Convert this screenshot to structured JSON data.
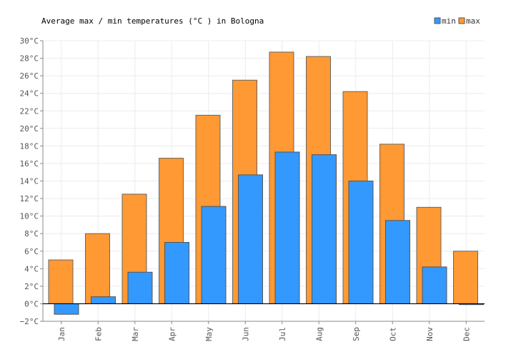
{
  "chart_data": {
    "type": "bar",
    "title": "Average max / min temperatures (°C ) in Bologna",
    "categories": [
      "Jan",
      "Feb",
      "Mar",
      "Apr",
      "May",
      "Jun",
      "Jul",
      "Aug",
      "Sep",
      "Oct",
      "Nov",
      "Dec"
    ],
    "series": [
      {
        "name": "min",
        "color": "#3399ff",
        "values": [
          -1.2,
          0.8,
          3.6,
          7.0,
          11.1,
          14.7,
          17.3,
          17.0,
          14.0,
          9.5,
          4.2,
          -0.1
        ]
      },
      {
        "name": "max",
        "color": "#ff9933",
        "values": [
          5.0,
          8.0,
          12.5,
          16.6,
          21.5,
          25.5,
          28.7,
          28.2,
          24.2,
          18.2,
          11.0,
          6.0
        ]
      }
    ],
    "ylim": [
      -2,
      30
    ],
    "ytick_step": 2,
    "yticks": [
      "−2°C",
      "0°C",
      "2°C",
      "4°C",
      "6°C",
      "8°C",
      "10°C",
      "12°C",
      "14°C",
      "16°C",
      "18°C",
      "20°C",
      "22°C",
      "24°C",
      "26°C",
      "28°C",
      "30°C"
    ],
    "xlabel": "",
    "ylabel": "",
    "legend": [
      {
        "label": "min",
        "color": "#3399ff"
      },
      {
        "label": "max",
        "color": "#ff9933"
      }
    ],
    "legend_position": "top-right",
    "grid": true
  }
}
